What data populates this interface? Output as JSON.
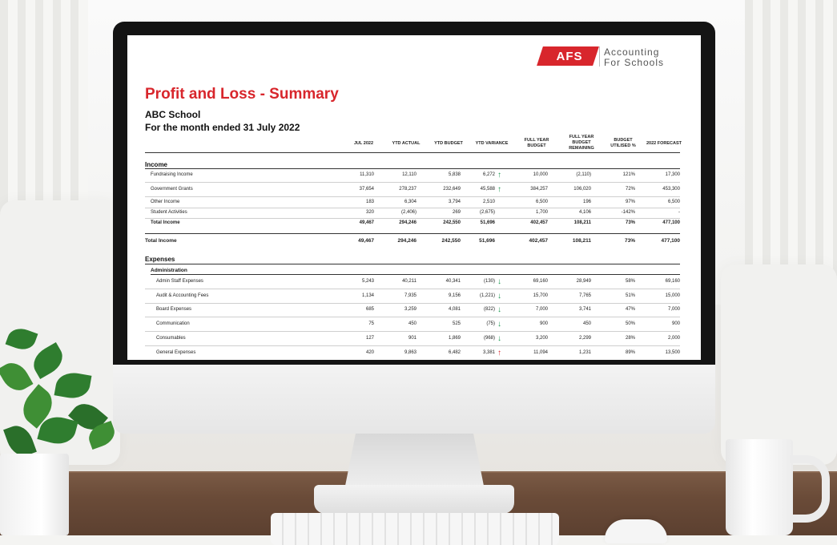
{
  "logo": {
    "mark": "AFS",
    "line1": "Accounting",
    "line2": "For Schools"
  },
  "report": {
    "title": "Profit and Loss - Summary",
    "school": "ABC School",
    "period": "For the month ended 31 July 2022"
  },
  "columns": [
    "JUL 2022",
    "YTD ACTUAL",
    "YTD BUDGET",
    "YTD VARIANCE",
    "FULL YEAR BUDGET",
    "FULL YEAR BUDGET REMAINING",
    "BUDGET UTILISED %",
    "2022 FORECAST"
  ],
  "sections": {
    "income": "Income",
    "total_income": "Total Income",
    "expenses": "Expenses",
    "administration": "Administration"
  },
  "income_rows": [
    {
      "label": "Fundraising Income",
      "values": [
        "11,310",
        "12,110",
        "5,838",
        "6,272",
        "10,000",
        "(2,110)",
        "121%",
        "17,300"
      ],
      "arrow": "up"
    },
    {
      "label": "Government Grants",
      "values": [
        "37,654",
        "278,237",
        "232,649",
        "45,588",
        "384,257",
        "106,020",
        "72%",
        "453,300"
      ],
      "arrow": "up"
    },
    {
      "label": "Other Income",
      "values": [
        "183",
        "6,304",
        "3,794",
        "2,510",
        "6,500",
        "196",
        "97%",
        "6,500"
      ],
      "arrow": ""
    },
    {
      "label": "Student Activities",
      "values": [
        "320",
        "(2,406)",
        "269",
        "(2,675)",
        "1,700",
        "4,106",
        "-142%",
        "-"
      ],
      "arrow": ""
    },
    {
      "label": "Total Income",
      "values": [
        "49,467",
        "294,246",
        "242,550",
        "51,696",
        "402,457",
        "108,211",
        "73%",
        "477,100"
      ],
      "arrow": ""
    }
  ],
  "total_income_row": {
    "label": "Total Income",
    "values": [
      "49,467",
      "294,246",
      "242,550",
      "51,696",
      "402,457",
      "108,211",
      "73%",
      "477,100"
    ]
  },
  "admin_rows": [
    {
      "label": "Admin Staff Expenses",
      "values": [
        "5,243",
        "40,211",
        "40,341",
        "(130)",
        "69,160",
        "28,949",
        "58%",
        "69,160"
      ],
      "arrow": "down"
    },
    {
      "label": "Audit & Accounting Fees",
      "values": [
        "1,134",
        "7,935",
        "9,156",
        "(1,221)",
        "15,700",
        "7,765",
        "51%",
        "15,000"
      ],
      "arrow": "down"
    },
    {
      "label": "Board Expenses",
      "values": [
        "685",
        "3,259",
        "4,081",
        "(822)",
        "7,000",
        "3,741",
        "47%",
        "7,000"
      ],
      "arrow": "down"
    },
    {
      "label": "Communication",
      "values": [
        "75",
        "450",
        "525",
        "(75)",
        "900",
        "450",
        "50%",
        "900"
      ],
      "arrow": "down"
    },
    {
      "label": "Consumables",
      "values": [
        "127",
        "901",
        "1,869",
        "(968)",
        "3,200",
        "2,299",
        "28%",
        "2,000"
      ],
      "arrow": "down"
    },
    {
      "label": "General Expenses",
      "values": [
        "420",
        "9,863",
        "6,482",
        "3,381",
        "11,094",
        "1,231",
        "89%",
        "13,500"
      ],
      "arrow": "up-red"
    }
  ],
  "colors": {
    "brand_red": "#d8262c",
    "arrow_green": "#1e9a52",
    "arrow_red": "#d8262c"
  }
}
